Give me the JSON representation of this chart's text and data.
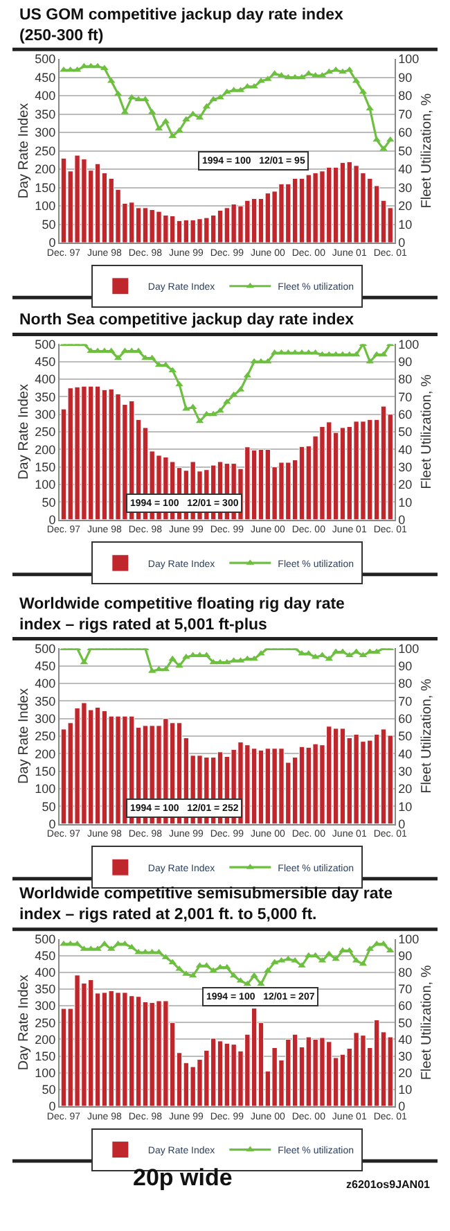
{
  "chart_data": [
    {
      "type": "bar",
      "title": "US GOM competitive jackup day rate index (250-300 ft)",
      "ylabel": "Day Rate Index",
      "y2label": "Fleet Utilization, %",
      "categories": [
        "Dec. 97",
        null,
        null,
        null,
        null,
        null,
        "June 98",
        null,
        null,
        null,
        null,
        null,
        "Dec. 98",
        null,
        null,
        null,
        null,
        null,
        "June 99",
        null,
        null,
        null,
        null,
        null,
        "Dec. 99",
        null,
        null,
        null,
        null,
        null,
        "June 00",
        null,
        null,
        null,
        null,
        null,
        "Dec. 00",
        null,
        null,
        null,
        null,
        null,
        "June 01",
        null,
        null,
        null,
        null,
        null,
        "Dec. 01"
      ],
      "series": [
        {
          "name": "Day Rate Index",
          "color": "#c0272d",
          "values": [
            230,
            195,
            238,
            228,
            197,
            215,
            190,
            175,
            145,
            107,
            110,
            95,
            95,
            90,
            85,
            75,
            73,
            60,
            62,
            62,
            65,
            68,
            75,
            88,
            95,
            105,
            100,
            115,
            120,
            120,
            135,
            140,
            160,
            160,
            175,
            175,
            185,
            190,
            195,
            205,
            205,
            218,
            220,
            210,
            190,
            175,
            155,
            115,
            95
          ]
        },
        {
          "name": "Fleet % utilization",
          "type": "line",
          "axis": "y2",
          "marker": "triangle",
          "color": "#6dbf3f",
          "values": [
            94,
            94,
            94,
            96,
            96,
            96,
            95,
            88,
            81,
            71,
            79,
            78,
            78,
            71,
            62,
            66,
            58,
            61,
            67,
            70,
            68,
            74,
            78,
            79,
            82,
            83,
            83,
            85,
            85,
            88,
            89,
            92,
            91,
            90,
            90,
            90,
            92,
            91,
            91,
            93,
            94,
            93,
            94,
            88,
            82,
            73,
            56,
            51,
            56
          ]
        }
      ],
      "ylim": [
        0,
        500
      ],
      "yticks": [
        0,
        50,
        100,
        150,
        200,
        250,
        300,
        350,
        400,
        450,
        500
      ],
      "y2lim": [
        0,
        100
      ],
      "y2ticks": [
        0,
        10,
        20,
        30,
        40,
        50,
        60,
        70,
        80,
        90,
        100
      ],
      "grid": "y",
      "legend": "bottom",
      "annotations": [
        "1994 = 100   12/01 = 95"
      ]
    },
    {
      "type": "bar",
      "title": "North Sea competitive jackup day rate index",
      "ylabel": "Day Rate Index",
      "y2label": "Fleet Utilization, %",
      "categories": [
        "Dec. 97",
        null,
        null,
        null,
        null,
        null,
        "June 98",
        null,
        null,
        null,
        null,
        null,
        "Dec. 98",
        null,
        null,
        null,
        null,
        null,
        "June 99",
        null,
        null,
        null,
        null,
        null,
        "Dec. 99",
        null,
        null,
        null,
        null,
        null,
        "June 00",
        null,
        null,
        null,
        null,
        null,
        "Dec. 00",
        null,
        null,
        null,
        null,
        null,
        "June 01",
        null,
        null,
        null,
        null,
        null,
        "Dec. 01"
      ],
      "series": [
        {
          "name": "Day Rate Index",
          "color": "#c0272d",
          "values": [
            315,
            375,
            378,
            380,
            380,
            380,
            370,
            372,
            358,
            328,
            338,
            285,
            262,
            195,
            183,
            178,
            165,
            148,
            140,
            165,
            138,
            142,
            155,
            165,
            160,
            160,
            145,
            207,
            198,
            200,
            200,
            150,
            163,
            163,
            170,
            208,
            210,
            238,
            265,
            278,
            248,
            262,
            265,
            280,
            280,
            285,
            285,
            323,
            300
          ]
        },
        {
          "name": "Fleet % utilization",
          "type": "line",
          "axis": "y2",
          "marker": "triangle",
          "color": "#6dbf3f",
          "values": [
            100,
            100,
            100,
            100,
            96,
            96,
            96,
            96,
            92,
            96,
            96,
            96,
            92,
            92,
            88,
            88,
            85,
            77,
            63,
            64,
            56,
            60,
            60,
            62,
            67,
            71,
            74,
            82,
            90,
            90,
            90,
            95,
            95,
            95,
            95,
            95,
            95,
            95,
            94,
            94,
            94,
            94,
            94,
            94,
            100,
            90,
            94,
            94,
            100
          ]
        }
      ],
      "ylim": [
        0,
        500
      ],
      "yticks": [
        0,
        50,
        100,
        150,
        200,
        250,
        300,
        350,
        400,
        450,
        500
      ],
      "y2lim": [
        0,
        100
      ],
      "y2ticks": [
        0,
        10,
        20,
        30,
        40,
        50,
        60,
        70,
        80,
        90,
        100
      ],
      "grid": "y",
      "legend": "bottom",
      "annotations": [
        "1994 = 100   12/01 = 300"
      ]
    },
    {
      "type": "bar",
      "title": "Worldwide competitive floating rig day rate index – rigs rated at 5,001 ft-plus",
      "ylabel": "Day Rate Index",
      "y2label": "Fleet Utilization, %",
      "categories": [
        "Dec. 97",
        null,
        null,
        null,
        null,
        null,
        "June 98",
        null,
        null,
        null,
        null,
        null,
        "Dec. 98",
        null,
        null,
        null,
        null,
        null,
        "June 99",
        null,
        null,
        null,
        null,
        null,
        "Dec. 99",
        null,
        null,
        null,
        null,
        null,
        "June 00",
        null,
        null,
        null,
        null,
        null,
        "Dec. 00",
        null,
        null,
        null,
        null,
        null,
        "June 01",
        null,
        null,
        null,
        null,
        null,
        "Dec. 01"
      ],
      "series": [
        {
          "name": "Day Rate Index",
          "color": "#c0272d",
          "values": [
            270,
            288,
            330,
            345,
            325,
            332,
            322,
            307,
            307,
            307,
            307,
            275,
            280,
            280,
            280,
            300,
            288,
            288,
            245,
            195,
            195,
            190,
            190,
            205,
            192,
            212,
            233,
            225,
            215,
            210,
            215,
            215,
            215,
            175,
            190,
            220,
            218,
            228,
            225,
            278,
            272,
            272,
            245,
            255,
            235,
            238,
            255,
            270,
            252
          ]
        },
        {
          "name": "Fleet % utilization",
          "type": "line",
          "axis": "y2",
          "marker": "triangle",
          "color": "#6dbf3f",
          "values": [
            100,
            100,
            100,
            92,
            100,
            100,
            100,
            100,
            100,
            100,
            100,
            100,
            100,
            87,
            88,
            88,
            94,
            90,
            95,
            96,
            96,
            96,
            92,
            92,
            92,
            93,
            93,
            94,
            94,
            97,
            100,
            100,
            100,
            100,
            100,
            97,
            97,
            95,
            96,
            94,
            98,
            98,
            96,
            98,
            96,
            98,
            98,
            100,
            100
          ]
        }
      ],
      "ylim": [
        0,
        500
      ],
      "yticks": [
        0,
        50,
        100,
        150,
        200,
        250,
        300,
        350,
        400,
        450,
        500
      ],
      "y2lim": [
        0,
        100
      ],
      "y2ticks": [
        0,
        10,
        20,
        30,
        40,
        50,
        60,
        70,
        80,
        90,
        100
      ],
      "grid": "y",
      "legend": "bottom",
      "annotations": [
        "1994 = 100   12/01 = 252"
      ]
    },
    {
      "type": "bar",
      "title": "Worldwide competitive semisubmersible day rate index – rigs rated at 2,001 ft. to 5,000 ft.",
      "ylabel": "Day Rate Index",
      "y2label": "Fleet Utilization, %",
      "categories": [
        "Dec. 97",
        null,
        null,
        null,
        null,
        null,
        "June 98",
        null,
        null,
        null,
        null,
        null,
        "Dec. 98",
        null,
        null,
        null,
        null,
        null,
        "June 99",
        null,
        null,
        null,
        null,
        null,
        "Dec. 99",
        null,
        null,
        null,
        null,
        null,
        "June 00",
        null,
        null,
        null,
        null,
        null,
        "Dec. 00",
        null,
        null,
        null,
        null,
        null,
        "June 01",
        null,
        null,
        null,
        null,
        null,
        "Dec. 01"
      ],
      "series": [
        {
          "name": "Day Rate Index",
          "color": "#c0272d",
          "values": [
            292,
            292,
            392,
            368,
            378,
            338,
            340,
            345,
            340,
            340,
            330,
            328,
            312,
            310,
            315,
            315,
            250,
            160,
            130,
            118,
            140,
            167,
            203,
            195,
            188,
            185,
            165,
            215,
            293,
            250,
            105,
            175,
            138,
            200,
            215,
            177,
            207,
            200,
            205,
            193,
            145,
            155,
            173,
            220,
            212,
            175,
            258,
            222,
            207
          ]
        },
        {
          "name": "Fleet % utilization",
          "type": "line",
          "axis": "y2",
          "marker": "triangle",
          "color": "#6dbf3f",
          "values": [
            97,
            97,
            97,
            94,
            94,
            94,
            97,
            94,
            97,
            97,
            95,
            92,
            92,
            92,
            92,
            89,
            86,
            82,
            79,
            78,
            84,
            84,
            81,
            83,
            83,
            78,
            75,
            73,
            78,
            73,
            81,
            86,
            87,
            88,
            87,
            84,
            90,
            90,
            87,
            91,
            88,
            93,
            93,
            87,
            85,
            94,
            97,
            97,
            93
          ]
        }
      ],
      "ylim": [
        0,
        500
      ],
      "yticks": [
        0,
        50,
        100,
        150,
        200,
        250,
        300,
        350,
        400,
        450,
        500
      ],
      "y2lim": [
        0,
        100
      ],
      "y2ticks": [
        0,
        10,
        20,
        30,
        40,
        50,
        60,
        70,
        80,
        90,
        100
      ],
      "grid": "y",
      "legend": "bottom",
      "annotations": [
        "1994 = 100   12/01 = 207",
        "20p wide",
        "z6201os9JAN01"
      ]
    }
  ]
}
